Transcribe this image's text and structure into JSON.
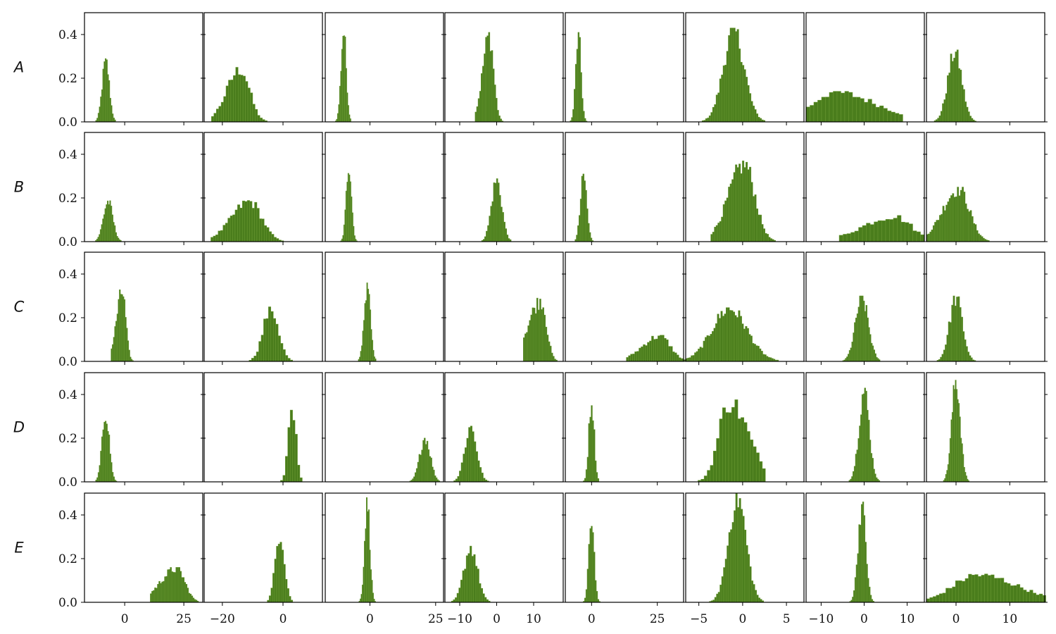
{
  "chart_data": {
    "type": "histogram-grid",
    "rows": [
      "A",
      "B",
      "C",
      "D",
      "E"
    ],
    "ylim": [
      0,
      0.5
    ],
    "yticks": [
      0.0,
      0.2,
      0.4
    ],
    "ytick_labels": [
      "0.0",
      "0.2",
      "0.4"
    ],
    "bar_color": "#4a7d1c",
    "bar_edge_color": "#6b9a34",
    "columns": [
      {
        "xlim": [
          -17,
          33
        ],
        "xticks": [
          0,
          25
        ],
        "xtick_labels": [
          "0",
          "25"
        ]
      },
      {
        "xlim": [
          -26,
          13
        ],
        "xticks": [
          -20,
          0
        ],
        "xtick_labels": [
          "−20",
          "0"
        ]
      },
      {
        "xlim": [
          -17,
          28
        ],
        "xticks": [
          0,
          25
        ],
        "xtick_labels": [
          "0",
          "25"
        ]
      },
      {
        "xlim": [
          -14,
          18
        ],
        "xticks": [
          -10,
          0,
          10
        ],
        "xtick_labels": [
          "−10",
          "0",
          "10"
        ]
      },
      {
        "xlim": [
          -10,
          35
        ],
        "xticks": [
          0,
          25
        ],
        "xtick_labels": [
          "0",
          "25"
        ]
      },
      {
        "xlim": [
          -6.5,
          7
        ],
        "xticks": [
          -5,
          0,
          5
        ],
        "xtick_labels": [
          "−5",
          "0",
          "5"
        ]
      },
      {
        "xlim": [
          -13.5,
          14
        ],
        "xticks": [
          -10,
          0,
          10
        ],
        "xtick_labels": [
          "−10",
          "0",
          "10"
        ]
      },
      {
        "xlim": [
          -5.5,
          16.5
        ],
        "xticks": [
          0,
          10
        ],
        "xtick_labels": [
          "0",
          "10"
        ]
      }
    ],
    "histograms": [
      [
        {
          "center": -8,
          "sd": 1.5,
          "peak": 0.29,
          "skew": 0,
          "width": 0.5
        },
        {
          "center": -14,
          "sd": 3.0,
          "peak": 0.25,
          "skew": -0.3,
          "width": 0.8
        },
        {
          "center": -10,
          "sd": 1.0,
          "peak": 0.43,
          "skew": 0,
          "width": 0.4
        },
        {
          "center": -2,
          "sd": 1.2,
          "peak": 0.41,
          "skew": -0.3,
          "width": 0.4
        },
        {
          "center": -5,
          "sd": 1.0,
          "peak": 0.41,
          "skew": 0,
          "width": 0.5
        },
        {
          "center": -1,
          "sd": 1.2,
          "peak": 0.43,
          "skew": 0,
          "width": 0.2
        },
        {
          "center": -7,
          "sd": 5.0,
          "peak": 0.14,
          "skew": 0.6,
          "width": 0.9
        },
        {
          "center": -0.2,
          "sd": 1.3,
          "peak": 0.33,
          "skew": 0,
          "width": 0.3
        }
      ],
      [
        {
          "center": -7,
          "sd": 2.0,
          "peak": 0.19,
          "skew": 0,
          "width": 0.5
        },
        {
          "center": -11,
          "sd": 4.0,
          "peak": 0.19,
          "skew": -0.3,
          "width": 0.8
        },
        {
          "center": -8,
          "sd": 1.0,
          "peak": 0.37,
          "skew": 0,
          "width": 0.4
        },
        {
          "center": 0,
          "sd": 1.4,
          "peak": 0.29,
          "skew": 0,
          "width": 0.4
        },
        {
          "center": -3,
          "sd": 1.2,
          "peak": 0.31,
          "skew": 0,
          "width": 0.5
        },
        {
          "center": 0.2,
          "sd": 1.2,
          "peak": 0.37,
          "skew": -0.3,
          "width": 0.2
        },
        {
          "center": 7,
          "sd": 4.0,
          "peak": 0.12,
          "skew": -0.5,
          "width": 0.9
        },
        {
          "center": 0.5,
          "sd": 2.0,
          "peak": 0.25,
          "skew": -0.3,
          "width": 0.3
        }
      ],
      [
        {
          "center": -1,
          "sd": 1.5,
          "peak": 0.33,
          "skew": -0.4,
          "width": 0.5
        },
        {
          "center": -4,
          "sd": 2.5,
          "peak": 0.25,
          "skew": 0,
          "width": 0.8
        },
        {
          "center": -1,
          "sd": 1.2,
          "peak": 0.36,
          "skew": 0,
          "width": 0.4
        },
        {
          "center": 12,
          "sd": 1.5,
          "peak": 0.29,
          "skew": -0.8,
          "width": 0.4
        },
        {
          "center": 26,
          "sd": 4.0,
          "peak": 0.12,
          "skew": -0.4,
          "width": 0.8
        },
        {
          "center": -1.5,
          "sd": 2.0,
          "peak": 0.25,
          "skew": 0,
          "width": 0.2
        },
        {
          "center": -0.5,
          "sd": 1.5,
          "peak": 0.3,
          "skew": 0,
          "width": 0.3
        },
        {
          "center": 0,
          "sd": 1.2,
          "peak": 0.3,
          "skew": 0,
          "width": 0.3
        }
      ],
      [
        {
          "center": -8,
          "sd": 1.5,
          "peak": 0.33,
          "skew": 0,
          "width": 0.5
        },
        {
          "center": 3,
          "sd": 1.2,
          "peak": 0.38,
          "skew": 0,
          "width": 0.8
        },
        {
          "center": 21,
          "sd": 2.0,
          "peak": 0.21,
          "skew": 0,
          "width": 0.5
        },
        {
          "center": -7,
          "sd": 1.6,
          "peak": 0.26,
          "skew": 0,
          "width": 0.5
        },
        {
          "center": 0,
          "sd": 1.0,
          "peak": 0.39,
          "skew": 0,
          "width": 0.5
        },
        {
          "center": -1.5,
          "sd": 1.2,
          "peak": 0.38,
          "skew": 0.5,
          "width": 0.35
        },
        {
          "center": 0,
          "sd": 1.2,
          "peak": 0.43,
          "skew": 0,
          "width": 0.3
        },
        {
          "center": 0,
          "sd": 0.8,
          "peak": 0.48,
          "skew": 0,
          "width": 0.2
        }
      ],
      [
        {
          "center": 22,
          "sd": 3.5,
          "peak": 0.16,
          "skew": -0.6,
          "width": 0.6
        },
        {
          "center": -1,
          "sd": 1.5,
          "peak": 0.33,
          "skew": 0,
          "width": 0.6
        },
        {
          "center": -1,
          "sd": 1.0,
          "peak": 0.48,
          "skew": 0,
          "width": 0.4
        },
        {
          "center": -7,
          "sd": 1.8,
          "peak": 0.26,
          "skew": 0,
          "width": 0.5
        },
        {
          "center": 0,
          "sd": 1.0,
          "peak": 0.4,
          "skew": 0,
          "width": 0.5
        },
        {
          "center": -0.6,
          "sd": 1.0,
          "peak": 0.5,
          "skew": 0,
          "width": 0.2
        },
        {
          "center": -0.5,
          "sd": 0.9,
          "peak": 0.46,
          "skew": 0,
          "width": 0.3
        },
        {
          "center": 4,
          "sd": 4.5,
          "peak": 0.13,
          "skew": 0.4,
          "width": 0.6
        }
      ]
    ]
  }
}
